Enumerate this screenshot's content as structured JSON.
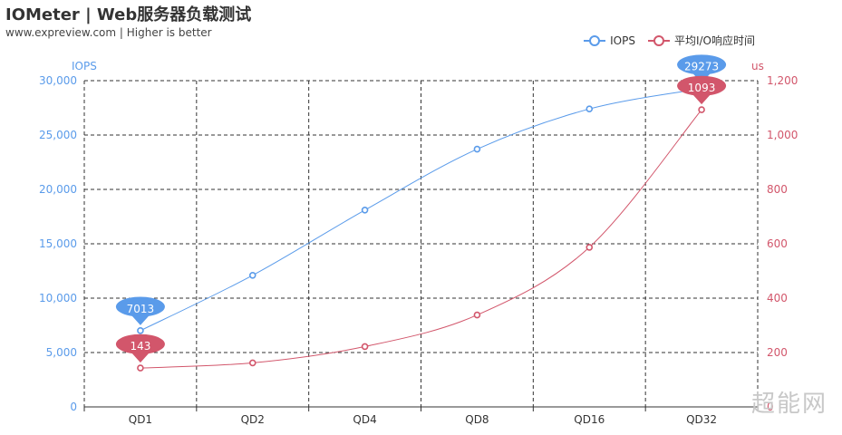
{
  "header": {
    "title": "IOMeter | Web服务器负载测试",
    "subtitle": "www.expreview.com | Higher is better"
  },
  "watermark": "超能网",
  "colors": {
    "iops": "#5a9bea",
    "latency": "#d2566b"
  },
  "chart_data": {
    "type": "line",
    "categories": [
      "QD1",
      "QD2",
      "QD4",
      "QD8",
      "QD16",
      "QD32"
    ],
    "series": [
      {
        "name": "IOPS",
        "axis": "left",
        "values": [
          7013,
          12100,
          18100,
          23700,
          27400,
          29273
        ]
      },
      {
        "name": "平均I/O响应时间",
        "axis": "right",
        "values": [
          143,
          162,
          222,
          338,
          587,
          1093
        ]
      }
    ],
    "y_left": {
      "label": "IOPS",
      "min": 0,
      "max": 30000,
      "ticks": [
        "0",
        "5,000",
        "10,000",
        "15,000",
        "20,000",
        "25,000",
        "30,000"
      ]
    },
    "y_right": {
      "label": "us",
      "min": 0,
      "max": 1200,
      "ticks": [
        "0",
        "200",
        "400",
        "600",
        "800",
        "1,000",
        "1,200"
      ]
    },
    "annotations": [
      {
        "series": "IOPS",
        "category": "QD1",
        "label": "7013"
      },
      {
        "series": "IOPS",
        "category": "QD32",
        "label": "29273"
      },
      {
        "series": "平均I/O响应时间",
        "category": "QD1",
        "label": "143"
      },
      {
        "series": "平均I/O响应时间",
        "category": "QD32",
        "label": "1093"
      }
    ],
    "grid": true,
    "smooth": true,
    "legend_position": "top-right"
  }
}
